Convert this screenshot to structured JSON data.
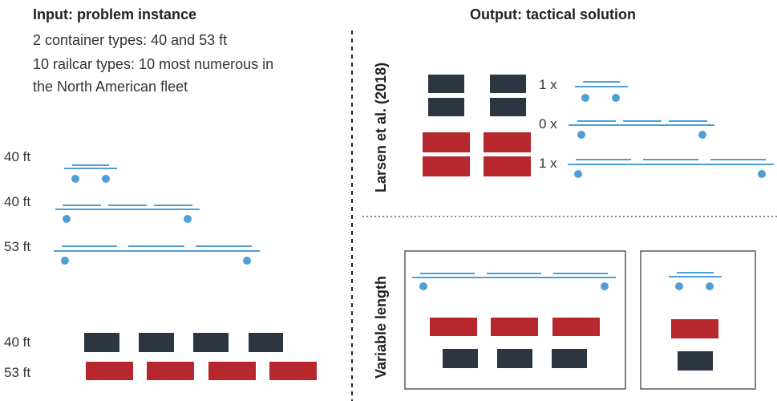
{
  "input": {
    "heading": "Input: problem instance",
    "line1": "2 container types: 40 and 53 ft",
    "line2a": "10 railcar types: 10 most numerous in",
    "line2b": "the North American fleet",
    "railcar_labels": [
      "40 ft",
      "40 ft",
      "53 ft"
    ],
    "container_labels": [
      "40 ft",
      "53 ft"
    ]
  },
  "output": {
    "heading": "Output: tactical solution",
    "section1_label": "Larsen et al. (2018)",
    "section2_label": "Variable length",
    "multipliers": [
      "1 x",
      "0 x",
      "1 x"
    ]
  },
  "colors": {
    "rail": "#4f9fd4",
    "container_40": "#2b3640",
    "container_53": "#b7282e"
  }
}
